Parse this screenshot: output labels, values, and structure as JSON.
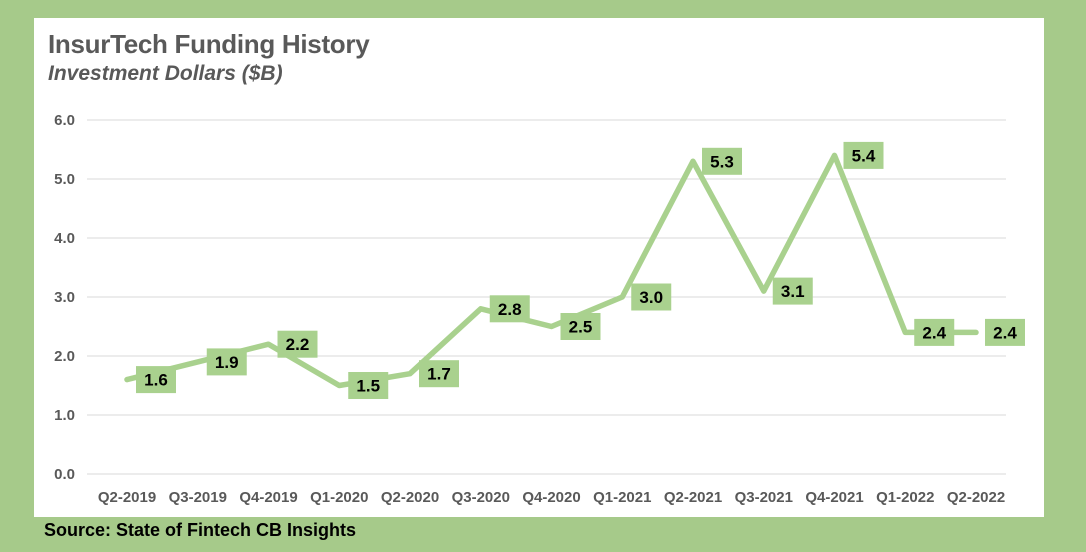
{
  "header": {
    "title": "InsurTech Funding History",
    "subtitle": "Investment Dollars ($B)"
  },
  "footer": {
    "source_note": "Source: State of Fintech CB Insights"
  },
  "chart_data": {
    "type": "line",
    "title": "InsurTech Funding History",
    "subtitle": "Investment Dollars ($B)",
    "categories": [
      "Q2-2019",
      "Q3-2019",
      "Q4-2019",
      "Q1-2020",
      "Q2-2020",
      "Q3-2020",
      "Q4-2020",
      "Q1-2021",
      "Q2-2021",
      "Q3-2021",
      "Q4-2021",
      "Q1-2022",
      "Q2-2022"
    ],
    "values": [
      1.6,
      1.9,
      2.2,
      1.5,
      1.7,
      2.8,
      2.5,
      3.0,
      5.3,
      3.1,
      5.4,
      2.4,
      2.4
    ],
    "point_labels": [
      "1.6",
      "1.9",
      "2.2",
      "1.5",
      "1.7",
      "2.8",
      "2.5",
      "3.0",
      "5.3",
      "3.1",
      "5.4",
      "2.4",
      "2.4"
    ],
    "xlabel": "",
    "ylabel": "Investment Dollars ($B)",
    "ylim": [
      0.0,
      6.0
    ],
    "ytick_interval": 1.0,
    "yticks": [
      "0.0",
      "1.0",
      "2.0",
      "3.0",
      "4.0",
      "5.0",
      "6.0"
    ],
    "grid": true,
    "legend": "none",
    "colors": {
      "frame": "#a6ca8a",
      "card": "#ffffff",
      "line": "#a9d18e",
      "label_box": "#a9d18e",
      "label_text": "#000000",
      "axis_text": "#595959",
      "gridline": "#d9d9d9",
      "title_text": "#595959",
      "source_text": "#000000"
    }
  }
}
